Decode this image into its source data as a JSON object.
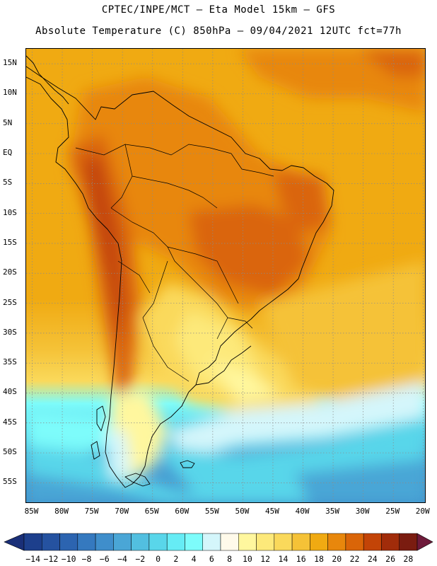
{
  "header": {
    "line1": "CPTEC/INPE/MCT –  Eta Model 15km – GFS",
    "line2": "Absolute Temperature (C) 850hPa – 09/04/2021 12UTC fct=77h"
  },
  "map": {
    "variable": "Absolute Temperature",
    "units": "C",
    "level": "850hPa",
    "lat_labels": [
      "15N",
      "10N",
      "5N",
      "EQ",
      "5S",
      "10S",
      "15S",
      "20S",
      "25S",
      "30S",
      "35S",
      "40S",
      "45S",
      "50S",
      "55S"
    ],
    "lat_values": [
      15,
      10,
      5,
      0,
      -5,
      -10,
      -15,
      -20,
      -25,
      -30,
      -35,
      -40,
      -45,
      -50,
      -55
    ],
    "lon_labels": [
      "85W",
      "80W",
      "75W",
      "70W",
      "65W",
      "60W",
      "55W",
      "50W",
      "45W",
      "40W",
      "35W",
      "30W",
      "25W",
      "20W"
    ],
    "lon_values": [
      -85,
      -80,
      -75,
      -70,
      -65,
      -60,
      -55,
      -50,
      -45,
      -40,
      -35,
      -30,
      -25,
      -20
    ]
  },
  "colorbar": {
    "labels": [
      "-14",
      "-12",
      "-10",
      "-8",
      "-6",
      "-4",
      "-2",
      "0",
      "2",
      "4",
      "6",
      "8",
      "10",
      "12",
      "14",
      "16",
      "18",
      "20",
      "22",
      "24",
      "26",
      "28"
    ],
    "colors": [
      "#1d3f8c",
      "#2552a0",
      "#2c64b0",
      "#3579bf",
      "#3f8ecb",
      "#4aa6d6",
      "#52bfe0",
      "#59d6ea",
      "#66ecf5",
      "#7dfcfb",
      "#d4f6fb",
      "#fffaea",
      "#fff79e",
      "#fde97a",
      "#fad95b",
      "#f5c237",
      "#f0aa12",
      "#e8870c",
      "#da6508",
      "#c34407",
      "#a12c0a",
      "#7a1c10"
    ],
    "low_color": "#1a2f78",
    "high_color": "#6e1a3a"
  }
}
